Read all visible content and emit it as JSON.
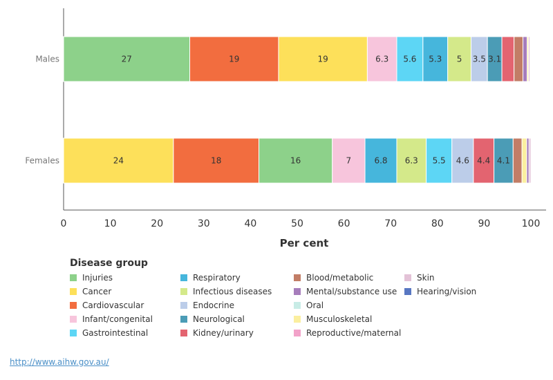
{
  "chart_data": {
    "type": "bar",
    "orientation": "horizontal",
    "stacked": true,
    "categories": [
      "Males",
      "Females"
    ],
    "xlabel": "Per cent",
    "xlim": [
      0,
      100
    ],
    "xticks": [
      0,
      10,
      20,
      30,
      40,
      50,
      60,
      70,
      80,
      90,
      100
    ],
    "legend_title": "Disease group",
    "groups": [
      {
        "name": "Injuries",
        "color": "#8dd18a"
      },
      {
        "name": "Cancer",
        "color": "#fde05a"
      },
      {
        "name": "Cardiovascular",
        "color": "#f26d3f"
      },
      {
        "name": "Infant/congenital",
        "color": "#f7c5dc"
      },
      {
        "name": "Gastrointestinal",
        "color": "#5dd6f5"
      },
      {
        "name": "Respiratory",
        "color": "#46b6dc"
      },
      {
        "name": "Infectious diseases",
        "color": "#d4e98a"
      },
      {
        "name": "Endocrine",
        "color": "#bccde9"
      },
      {
        "name": "Neurological",
        "color": "#4b9cb6"
      },
      {
        "name": "Kidney/urinary",
        "color": "#e36470"
      },
      {
        "name": "Blood/metabolic",
        "color": "#c27d66"
      },
      {
        "name": "Mental/substance use",
        "color": "#a67dbb"
      },
      {
        "name": "Oral",
        "color": "#c8ece6"
      },
      {
        "name": "Musculoskeletal",
        "color": "#fbef9f"
      },
      {
        "name": "Reproductive/maternal",
        "color": "#f2a2c9"
      },
      {
        "name": "Skin",
        "color": "#e3c2d7"
      },
      {
        "name": "Hearing/vision",
        "color": "#5877c2"
      }
    ],
    "bars": [
      {
        "category": "Males",
        "segments": [
          {
            "group": "Injuries",
            "value": 27,
            "label": "27"
          },
          {
            "group": "Cardiovascular",
            "value": 19,
            "label": "19"
          },
          {
            "group": "Cancer",
            "value": 19,
            "label": "19"
          },
          {
            "group": "Infant/congenital",
            "value": 6.3,
            "label": "6.3"
          },
          {
            "group": "Gastrointestinal",
            "value": 5.6,
            "label": "5.6"
          },
          {
            "group": "Respiratory",
            "value": 5.3,
            "label": "5.3"
          },
          {
            "group": "Infectious diseases",
            "value": 5,
            "label": "5"
          },
          {
            "group": "Endocrine",
            "value": 3.5,
            "label": "3.5"
          },
          {
            "group": "Neurological",
            "value": 3.1,
            "label": "3.1"
          },
          {
            "group": "Kidney/urinary",
            "value": 2.6,
            "label": ""
          },
          {
            "group": "Blood/metabolic",
            "value": 1.9,
            "label": ""
          },
          {
            "group": "Mental/substance use",
            "value": 0.9,
            "label": ""
          },
          {
            "group": "Musculoskeletal",
            "value": 0.3,
            "label": ""
          },
          {
            "group": "Skin",
            "value": 0.3,
            "label": ""
          }
        ]
      },
      {
        "category": "Females",
        "segments": [
          {
            "group": "Cancer",
            "value": 23.5,
            "label": "24"
          },
          {
            "group": "Cardiovascular",
            "value": 18.3,
            "label": "18"
          },
          {
            "group": "Injuries",
            "value": 15.7,
            "label": "16"
          },
          {
            "group": "Infant/congenital",
            "value": 7,
            "label": "7"
          },
          {
            "group": "Respiratory",
            "value": 6.8,
            "label": "6.8"
          },
          {
            "group": "Infectious diseases",
            "value": 6.3,
            "label": "6.3"
          },
          {
            "group": "Gastrointestinal",
            "value": 5.5,
            "label": "5.5"
          },
          {
            "group": "Endocrine",
            "value": 4.6,
            "label": "4.6"
          },
          {
            "group": "Kidney/urinary",
            "value": 4.4,
            "label": "4.4"
          },
          {
            "group": "Neurological",
            "value": 4.1,
            "label": "4.1"
          },
          {
            "group": "Blood/metabolic",
            "value": 1.9,
            "label": ""
          },
          {
            "group": "Musculoskeletal",
            "value": 1,
            "label": ""
          },
          {
            "group": "Mental/substance use",
            "value": 0.5,
            "label": ""
          },
          {
            "group": "Skin",
            "value": 0.4,
            "label": ""
          }
        ]
      }
    ]
  },
  "legend": {
    "columns": [
      [
        "Injuries",
        "Cancer",
        "Cardiovascular",
        "Infant/congenital",
        "Gastrointestinal"
      ],
      [
        "Respiratory",
        "Infectious diseases",
        "Endocrine",
        "Neurological",
        "Kidney/urinary"
      ],
      [
        "Blood/metabolic",
        "Mental/substance use",
        "Oral",
        "Musculoskeletal",
        "Reproductive/maternal"
      ],
      [
        "Skin",
        "Hearing/vision"
      ]
    ]
  },
  "source": {
    "link_text": "http://www.aihw.gov.au/"
  }
}
